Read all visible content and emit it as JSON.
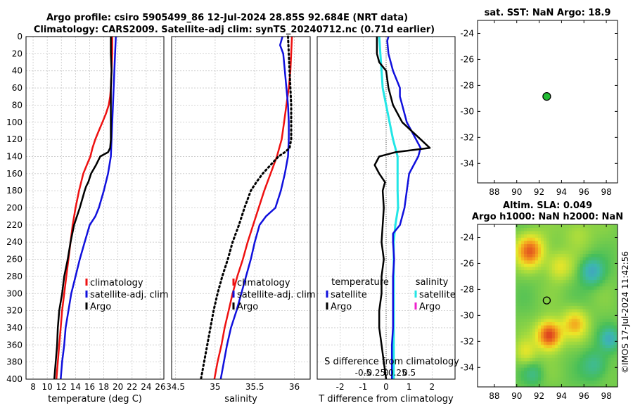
{
  "figure": {
    "title_line1": "Argo profile: csiro 5905499_86 12-Jul-2024 28.85S 92.684E (NRT data)",
    "title_line2": "Climatology: CARS2009. Satellite-adj clim: synTS_20240712.nc (0.71d earlier)",
    "watermark": "©IMOS 17-Jul-2024 11:42:56",
    "colors": {
      "climatology": "#ee1111",
      "satellite": "#1010dd",
      "argo": "#000000",
      "cyan": "#22e6e6",
      "magenta": "#ee22cc",
      "marker": "#22bb33"
    }
  },
  "chart_data": [
    {
      "id": "temperature",
      "type": "line",
      "xlabel": "temperature (deg C)",
      "ylabel": "",
      "xlim": [
        7,
        26.5
      ],
      "ylim": [
        400,
        0
      ],
      "xticks": [
        8,
        10,
        12,
        14,
        16,
        18,
        20,
        22,
        24,
        26
      ],
      "yticks": [
        0,
        20,
        40,
        60,
        80,
        100,
        120,
        140,
        160,
        180,
        200,
        220,
        240,
        260,
        280,
        300,
        320,
        340,
        360,
        380,
        400
      ],
      "legend": [
        "climatology",
        "satellite-adj. clim",
        "Argo"
      ],
      "legend_position": "bottom-right",
      "series": [
        {
          "name": "climatology",
          "color": "#ee1111",
          "width": 2.5,
          "dash": "",
          "depth": [
            0,
            20,
            40,
            60,
            70,
            80,
            90,
            100,
            110,
            120,
            130,
            140,
            150,
            160,
            170,
            180,
            200,
            220,
            240,
            260,
            280,
            300,
            320,
            340,
            360,
            380,
            400
          ],
          "values": [
            19.2,
            19.2,
            19.1,
            19.0,
            18.9,
            18.7,
            18.3,
            17.8,
            17.3,
            16.8,
            16.4,
            16.1,
            15.6,
            15.1,
            14.8,
            14.5,
            14.0,
            13.6,
            13.3,
            13.0,
            12.7,
            12.4,
            12.1,
            11.9,
            11.7,
            11.5,
            11.3
          ]
        },
        {
          "name": "satellite-adj. clim",
          "color": "#1010dd",
          "width": 2.5,
          "dash": "",
          "depth": [
            0,
            20,
            40,
            60,
            80,
            100,
            120,
            140,
            160,
            180,
            200,
            210,
            220,
            240,
            260,
            280,
            300,
            320,
            340,
            360,
            380,
            400
          ],
          "values": [
            19.7,
            19.6,
            19.5,
            19.4,
            19.3,
            19.2,
            19.1,
            19.0,
            18.6,
            18.0,
            17.3,
            16.8,
            16.0,
            15.3,
            14.6,
            14.0,
            13.4,
            13.0,
            12.6,
            12.4,
            12.1,
            11.9
          ]
        },
        {
          "name": "Argo",
          "color": "#000000",
          "width": 2.5,
          "dash": "",
          "depth": [
            0,
            20,
            40,
            60,
            80,
            100,
            110,
            120,
            130,
            135,
            140,
            150,
            160,
            170,
            175,
            180,
            200,
            220,
            240,
            260,
            280,
            300,
            320,
            340,
            360,
            380,
            400
          ],
          "values": [
            19.0,
            19.0,
            19.1,
            19.0,
            19.0,
            19.0,
            19.0,
            19.0,
            18.9,
            18.6,
            17.5,
            16.9,
            16.2,
            15.8,
            15.5,
            15.3,
            14.6,
            13.8,
            13.3,
            12.9,
            12.4,
            12.1,
            11.7,
            11.5,
            11.4,
            11.2,
            11.0
          ]
        }
      ]
    },
    {
      "id": "salinity",
      "type": "line",
      "xlabel": "salinity",
      "xlim": [
        34.45,
        36.2
      ],
      "ylim": [
        400,
        0
      ],
      "xticks": [
        34.5,
        35,
        35.5,
        36
      ],
      "xticklabels": [
        "34.5",
        "35",
        "35.5",
        "36"
      ],
      "legend": [
        "climatology",
        "satellite-adj. clim",
        "Argo"
      ],
      "legend_position": "bottom-right",
      "series": [
        {
          "name": "climatology",
          "color": "#ee1111",
          "width": 2.5,
          "dash": "",
          "depth": [
            0,
            20,
            40,
            60,
            80,
            100,
            120,
            140,
            160,
            180,
            200,
            220,
            240,
            260,
            280,
            300,
            320,
            340,
            360,
            380,
            400
          ],
          "values": [
            35.97,
            35.96,
            35.95,
            35.93,
            35.9,
            35.87,
            35.84,
            35.78,
            35.7,
            35.62,
            35.55,
            35.48,
            35.41,
            35.35,
            35.28,
            35.22,
            35.17,
            35.12,
            35.08,
            35.03,
            34.99
          ]
        },
        {
          "name": "satellite-adj. clim",
          "color": "#1010dd",
          "width": 2.5,
          "dash": "",
          "depth": [
            0,
            10,
            20,
            40,
            60,
            80,
            100,
            120,
            140,
            160,
            180,
            200,
            210,
            220,
            240,
            260,
            280,
            300,
            320,
            340,
            360,
            380,
            400
          ],
          "values": [
            35.85,
            35.82,
            35.86,
            35.88,
            35.9,
            35.92,
            35.93,
            35.93,
            35.92,
            35.88,
            35.83,
            35.76,
            35.64,
            35.56,
            35.5,
            35.45,
            35.39,
            35.33,
            35.27,
            35.2,
            35.15,
            35.11,
            35.07
          ]
        },
        {
          "name": "Argo",
          "color": "#000000",
          "width": 3,
          "dash": "2,4",
          "depth": [
            0,
            20,
            40,
            60,
            80,
            100,
            110,
            120,
            130,
            135,
            140,
            150,
            160,
            170,
            180,
            200,
            220,
            240,
            260,
            280,
            300,
            320,
            340,
            360,
            380,
            400
          ],
          "values": [
            35.92,
            35.93,
            35.94,
            35.95,
            35.96,
            35.96,
            35.96,
            35.96,
            35.94,
            35.88,
            35.8,
            35.7,
            35.6,
            35.52,
            35.45,
            35.37,
            35.3,
            35.22,
            35.16,
            35.09,
            35.03,
            34.98,
            34.94,
            34.9,
            34.86,
            34.82
          ]
        }
      ]
    },
    {
      "id": "difference",
      "type": "line",
      "xlabel": "T difference from climatology",
      "top_axis_label": "S difference from climatology",
      "xlim": [
        -3,
        3
      ],
      "ylim": [
        400,
        0
      ],
      "xticks": [
        -2,
        -1,
        0,
        1,
        2
      ],
      "xticklabels": [
        "-2",
        "-1",
        "0",
        "1",
        "2"
      ],
      "s_xticks": [
        -1,
        -0.5,
        0,
        0.5,
        1
      ],
      "s_xticklabels": [
        "-0.5",
        "-0.25",
        "0",
        "0.25",
        "0.5"
      ],
      "legend_temperature_title": "temperature",
      "legend_salinity_title": "salinity",
      "legend_temperature": [
        "satellite",
        "Argo"
      ],
      "legend_salinity": [
        "satellite",
        "Argo"
      ],
      "series": [
        {
          "name": "T satellite",
          "color": "#1010dd",
          "width": 2.5,
          "dash": "",
          "depth": [
            0,
            5,
            20,
            40,
            60,
            70,
            80,
            100,
            120,
            130,
            140,
            150,
            160,
            180,
            200,
            220,
            230,
            240,
            260,
            280,
            300,
            320,
            340,
            360,
            380,
            400
          ],
          "values": [
            0.1,
            0.05,
            0.1,
            0.3,
            0.6,
            0.6,
            0.7,
            0.9,
            1.3,
            1.5,
            1.4,
            1.2,
            1.0,
            0.9,
            0.8,
            0.6,
            0.3,
            0.3,
            0.35,
            0.3,
            0.3,
            0.3,
            0.3,
            0.25,
            0.25,
            0.25
          ]
        },
        {
          "name": "T Argo",
          "color": "#000000",
          "width": 2.5,
          "dash": "",
          "depth": [
            0,
            20,
            30,
            40,
            60,
            80,
            100,
            110,
            120,
            130,
            135,
            140,
            150,
            160,
            170,
            180,
            200,
            220,
            240,
            260,
            280,
            300,
            320,
            340,
            360,
            380,
            400
          ],
          "values": [
            -0.4,
            -0.4,
            -0.3,
            0.0,
            0.1,
            0.3,
            0.7,
            1.1,
            1.5,
            1.9,
            0.4,
            -0.3,
            -0.5,
            -0.3,
            -0.05,
            -0.15,
            -0.1,
            -0.15,
            -0.2,
            -0.1,
            -0.2,
            -0.2,
            -0.3,
            -0.3,
            -0.2,
            -0.1,
            0.0
          ]
        },
        {
          "name": "S satellite",
          "color": "#22e6e6",
          "width": 3,
          "dash": "",
          "depth": [
            0,
            20,
            40,
            60,
            80,
            100,
            120,
            140,
            150,
            160,
            180,
            200,
            220,
            240,
            260,
            280,
            300,
            320,
            340,
            360,
            380,
            400
          ],
          "values": [
            -0.3,
            -0.25,
            -0.2,
            -0.15,
            0.0,
            0.15,
            0.3,
            0.5,
            0.5,
            0.5,
            0.5,
            0.52,
            0.4,
            0.33,
            0.33,
            0.33,
            0.33,
            0.33,
            0.33,
            0.33,
            0.33,
            0.33
          ]
        }
      ]
    },
    {
      "id": "sst",
      "type": "scatter",
      "title": "sat. SST: NaN Argo: 18.9",
      "xlim": [
        86.5,
        99
      ],
      "ylim": [
        -35.5,
        -23
      ],
      "xticks": [
        88,
        90,
        92,
        94,
        96,
        98
      ],
      "xticklabels": [
        "88",
        "90",
        "92",
        "94",
        "96",
        "98"
      ],
      "yticks": [
        -24,
        -26,
        -28,
        -30,
        -32,
        -34
      ],
      "yticklabels": [
        "-24",
        "-26",
        "-28",
        "-30",
        "-32",
        "-34"
      ],
      "points": [
        {
          "x": 92.68,
          "y": -28.85
        }
      ]
    },
    {
      "id": "sla",
      "type": "heatmap",
      "title_line1": "Altim. SLA: 0.049",
      "title_line2": "Argo h1000: NaN h2000: NaN",
      "xlim": [
        86.5,
        99
      ],
      "ylim": [
        -35.5,
        -23
      ],
      "xticks": [
        88,
        90,
        92,
        94,
        96,
        98
      ],
      "xticklabels": [
        "88",
        "90",
        "92",
        "94",
        "96",
        "98"
      ],
      "yticks": [
        -24,
        -26,
        -28,
        -30,
        -32,
        -34
      ],
      "yticklabels": [
        "-24",
        "-26",
        "-28",
        "-30",
        "-32",
        "-34"
      ],
      "data_xrange": [
        89.9,
        99
      ],
      "points": [
        {
          "x": 92.68,
          "y": -28.85
        }
      ],
      "blobs": [
        {
          "lon": 91.2,
          "lat": -25.0,
          "amp": 0.9,
          "sig": 0.9
        },
        {
          "lon": 92.9,
          "lat": -31.5,
          "amp": 1.1,
          "sig": 0.8
        },
        {
          "lon": 95.2,
          "lat": -30.6,
          "amp": 0.6,
          "sig": 0.8
        },
        {
          "lon": 93.8,
          "lat": -26.2,
          "amp": 0.45,
          "sig": 0.8
        },
        {
          "lon": 90.8,
          "lat": -32.8,
          "amp": 0.4,
          "sig": 0.7
        },
        {
          "lon": 96.7,
          "lat": -26.6,
          "amp": -0.7,
          "sig": 0.7
        },
        {
          "lon": 98.3,
          "lat": -31.8,
          "amp": -0.6,
          "sig": 0.6
        },
        {
          "lon": 97.0,
          "lat": -33.8,
          "amp": -0.4,
          "sig": 0.8
        },
        {
          "lon": 91.5,
          "lat": -34.5,
          "amp": -0.3,
          "sig": 0.6
        },
        {
          "lon": 95.5,
          "lat": -23.6,
          "amp": 0.25,
          "sig": 0.9
        }
      ]
    }
  ]
}
